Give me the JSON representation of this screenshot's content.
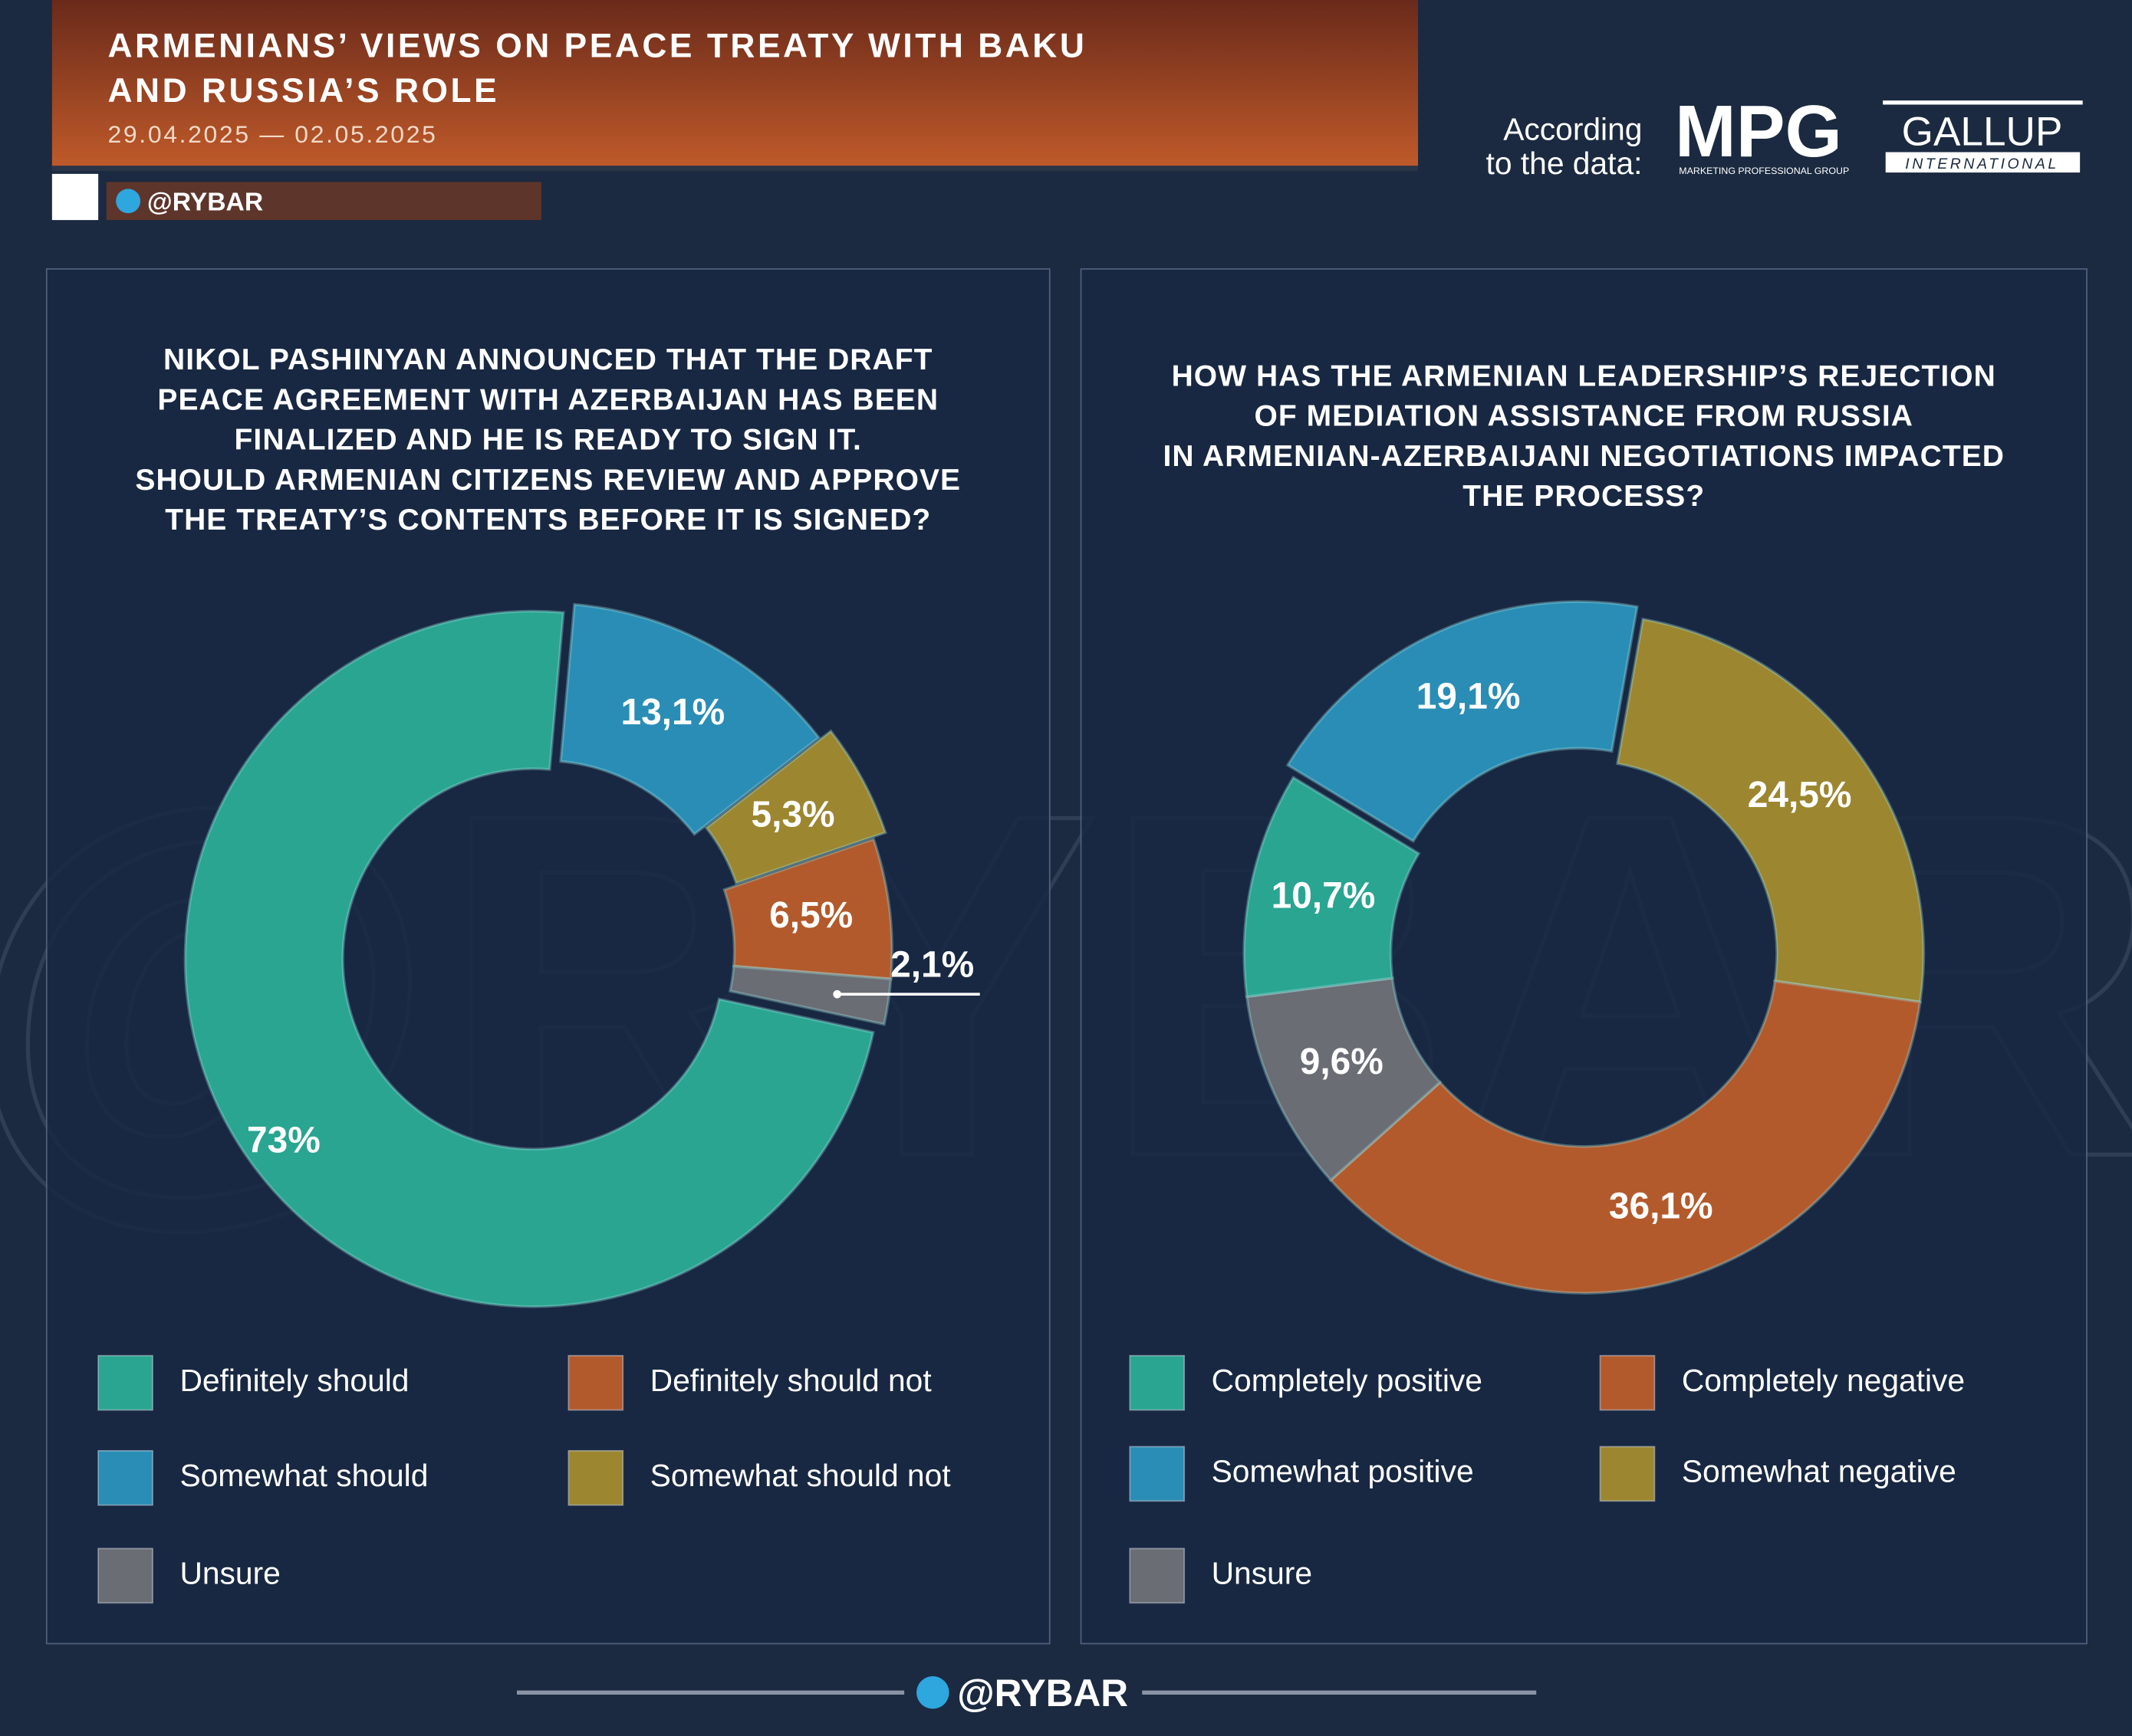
{
  "header": {
    "title_lines": [
      "ARMENIANS’ VIEWS ON PEACE TREATY WITH BAKU",
      "AND RUSSIA’S ROLE"
    ],
    "dates": "29.04.2025 — 02.05.2025",
    "handle": "@RYBAR",
    "source_lines": [
      "According",
      "to the data:"
    ],
    "logo_mpg": "MPG",
    "logo_mpg_sub": "MARKETING PROFESSIONAL GROUP",
    "logo_gallup": "GALLUP",
    "logo_gallup_sub": "INTERNATIONAL"
  },
  "watermark": "@RYBAR",
  "footer": {
    "handle": "@RYBAR"
  },
  "chart_data": [
    {
      "type": "pie",
      "donut": true,
      "title_lines": [
        "NIKOL PASHINYAN ANNOUNCED THAT THE DRAFT",
        "PEACE AGREEMENT WITH AZERBAIJAN HAS BEEN",
        "FINALIZED AND HE IS READY TO SIGN IT.",
        "SHOULD ARMENIAN CITIZENS REVIEW AND APPROVE",
        "THE TREATY’S CONTENTS BEFORE IT IS SIGNED?"
      ],
      "categories": [
        "Somewhat should",
        "Somewhat should not",
        "Definitely should not",
        "Unsure",
        "Definitely should"
      ],
      "values": [
        13.1,
        5.3,
        6.5,
        2.1,
        73
      ],
      "value_labels": [
        "13,1%",
        "5,3%",
        "6,5%",
        "2,1%",
        "73%"
      ],
      "colors": [
        "#2a8db5",
        "#9c8630",
        "#b35a2c",
        "#6a6d74",
        "#2aa592"
      ]
    },
    {
      "type": "pie",
      "donut": true,
      "title_lines": [
        "HOW HAS THE ARMENIAN LEADERSHIP’S REJECTION",
        "OF MEDIATION ASSISTANCE FROM RUSSIA",
        "IN ARMENIAN-AZERBAIJANI NEGOTIATIONS IMPACTED",
        "THE PROCESS?"
      ],
      "categories": [
        "Somewhat negative",
        "Completely negative",
        "Unsure",
        "Completely positive",
        "Somewhat positive"
      ],
      "values": [
        24.5,
        36.1,
        9.6,
        10.7,
        19.1
      ],
      "value_labels": [
        "24,5%",
        "36,1%",
        "9,6%",
        "10,7%",
        "19,1%"
      ],
      "colors": [
        "#9c8630",
        "#b35a2c",
        "#6a6d74",
        "#2aa592",
        "#2a8db5"
      ]
    }
  ]
}
